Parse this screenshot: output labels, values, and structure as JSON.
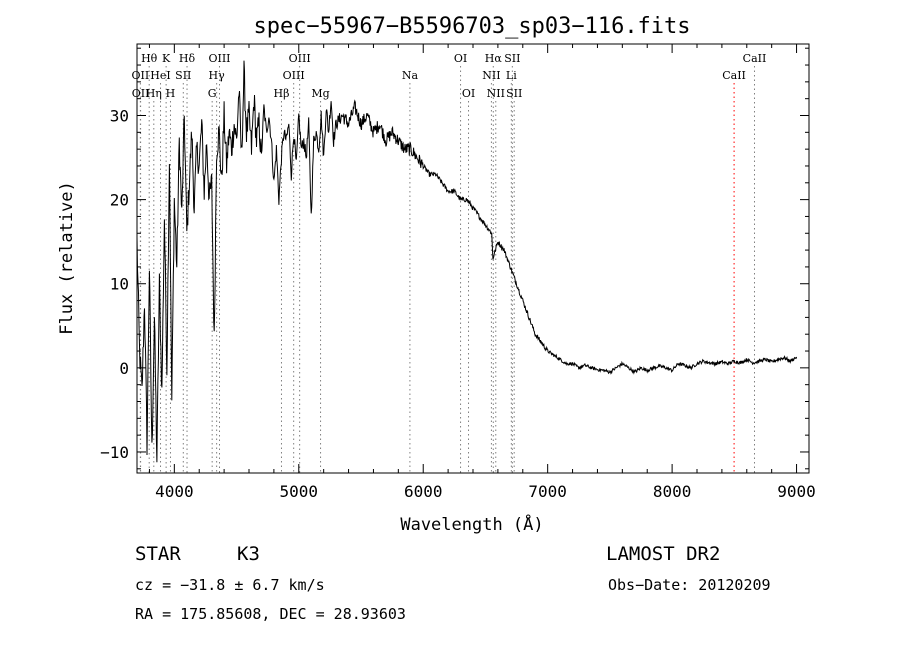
{
  "chart_data": {
    "type": "line",
    "title": "spec−55967−B5596703_sp03−116.fits",
    "xlabel": "Wavelength (Å)",
    "ylabel": "Flux (relative)",
    "xlim": [
      3700,
      9100
    ],
    "ylim": [
      -12.5,
      38.5
    ],
    "xticks": [
      4000,
      5000,
      6000,
      7000,
      8000,
      9000
    ],
    "xtick_labels": [
      "4000",
      "5000",
      "6000",
      "7000",
      "8000",
      "9000"
    ],
    "yticks": [
      -10,
      0,
      10,
      20,
      30
    ],
    "ytick_labels": [
      "−10",
      "0",
      "10",
      "20",
      "30"
    ],
    "grid": false,
    "series": [
      {
        "x": [
          3700,
          3720,
          3740,
          3760,
          3780,
          3800,
          3820,
          3840,
          3860,
          3880,
          3900,
          3920,
          3940,
          3960,
          3980,
          4000,
          4020,
          4040,
          4060,
          4080,
          4100,
          4120,
          4140,
          4160,
          4180,
          4200,
          4220,
          4240,
          4260,
          4280,
          4300,
          4320,
          4340,
          4360,
          4380,
          4400,
          4420,
          4440,
          4460,
          4480,
          4500,
          4520,
          4540,
          4560,
          4580,
          4600,
          4620,
          4640,
          4660,
          4680,
          4700,
          4720,
          4740,
          4760,
          4780,
          4800,
          4820,
          4840,
          4860,
          4880,
          4900,
          4920,
          4940,
          4960,
          4980,
          5000,
          5020,
          5040,
          5060,
          5080,
          5100,
          5120,
          5140,
          5160,
          5180,
          5200,
          5220,
          5240,
          5260,
          5280,
          5300,
          5350,
          5400,
          5450,
          5500,
          5550,
          5600,
          5650,
          5700,
          5750,
          5800,
          5850,
          5900,
          5950,
          6000,
          6050,
          6100,
          6150,
          6200,
          6250,
          6300,
          6350,
          6400,
          6450,
          6500,
          6550,
          6560,
          6600,
          6650,
          6700,
          6750,
          6800,
          6850,
          6900,
          6950,
          7000,
          7050,
          7100,
          7150,
          7200,
          7250,
          7300,
          7350,
          7400,
          7450,
          7500,
          7550,
          7600,
          7650,
          7700,
          7750,
          7800,
          7850,
          7900,
          7950,
          8000,
          8050,
          8100,
          8150,
          8200,
          8250,
          8300,
          8350,
          8400,
          8450,
          8500,
          8550,
          8600,
          8650,
          8700,
          8750,
          8800,
          8850,
          8900,
          8950,
          9000
        ],
        "y": [
          15,
          2,
          -3,
          8,
          -9,
          12,
          -10,
          6,
          -11,
          10,
          -3,
          18,
          0,
          25,
          -4,
          20,
          12,
          27,
          18,
          30,
          16,
          22,
          28,
          19,
          26,
          24,
          29,
          21,
          27,
          20,
          22,
          3,
          26,
          28,
          22,
          30,
          24,
          28,
          26,
          29,
          27,
          33,
          25,
          35,
          28,
          30,
          26,
          32,
          27,
          29,
          25,
          31,
          28,
          30,
          27,
          22,
          26,
          20,
          25,
          28,
          27,
          29,
          23,
          28,
          24,
          30,
          26,
          27,
          25,
          29,
          18,
          27,
          28,
          26,
          30,
          25,
          31,
          28,
          32,
          27,
          29,
          30,
          29,
          31,
          29,
          30,
          28,
          29,
          27,
          28,
          27,
          26,
          26,
          25,
          24,
          23,
          23,
          22,
          21,
          21,
          20,
          20,
          19,
          18,
          17,
          16,
          13,
          15,
          14,
          12,
          10,
          8,
          6,
          4,
          3,
          2,
          1.5,
          1,
          0.5,
          0.5,
          0,
          0.3,
          0,
          -0.2,
          -0.3,
          -0.5,
          0,
          0.5,
          0,
          -0.5,
          0,
          -0.3,
          0,
          0.2,
          0,
          -0.3,
          0.5,
          0.3,
          0,
          0.5,
          0.8,
          0.6,
          0.5,
          0.7,
          0.5,
          0.8,
          0.6,
          1,
          0.6,
          0.8,
          1,
          0.7,
          1,
          1.2,
          0.8,
          1.3
        ]
      }
    ],
    "line_markers": [
      {
        "label": "Hθ",
        "x": 3798,
        "tier": 0,
        "color": "#808080"
      },
      {
        "label": "K",
        "x": 3934,
        "tier": 0,
        "color": "#808080"
      },
      {
        "label": "Hδ",
        "x": 4102,
        "tier": 0,
        "color": "#808080"
      },
      {
        "label": "OII",
        "x": 3727,
        "tier": 1,
        "color": "#808080"
      },
      {
        "label": "HeI",
        "x": 3889,
        "tier": 1,
        "color": "#808080"
      },
      {
        "label": "SII",
        "x": 4072,
        "tier": 1,
        "color": "#808080"
      },
      {
        "label": "OII",
        "x": 3729,
        "tier": 2,
        "color": "#808080"
      },
      {
        "label": "Hη",
        "x": 3835,
        "tier": 2,
        "color": "#808080"
      },
      {
        "label": "H",
        "x": 3969,
        "tier": 2,
        "color": "#808080"
      },
      {
        "label": "OIII",
        "x": 4363,
        "tier": 0,
        "color": "#808080"
      },
      {
        "label": "Hγ",
        "x": 4340,
        "tier": 1,
        "color": "#808080"
      },
      {
        "label": "G",
        "x": 4304,
        "tier": 2,
        "color": "#808080"
      },
      {
        "label": "OIII",
        "x": 5007,
        "tier": 0,
        "color": "#808080"
      },
      {
        "label": "OIII",
        "x": 4959,
        "tier": 1,
        "color": "#808080"
      },
      {
        "label": "Hβ",
        "x": 4861,
        "tier": 2,
        "color": "#808080"
      },
      {
        "label": "Mg",
        "x": 5175,
        "tier": 2,
        "color": "#808080"
      },
      {
        "label": "Na",
        "x": 5893,
        "tier": 1,
        "color": "#808080"
      },
      {
        "label": "OI",
        "x": 6300,
        "tier": 0,
        "color": "#808080"
      },
      {
        "label": "OI",
        "x": 6364,
        "tier": 2,
        "color": "#808080"
      },
      {
        "label": "Hα",
        "x": 6563,
        "tier": 0,
        "color": "#808080"
      },
      {
        "label": "SII",
        "x": 6716,
        "tier": 0,
        "color": "#808080"
      },
      {
        "label": "NII",
        "x": 6548,
        "tier": 1,
        "color": "#808080"
      },
      {
        "label": "Li",
        "x": 6708,
        "tier": 1,
        "color": "#808080"
      },
      {
        "label": "NII",
        "x": 6583,
        "tier": 2,
        "color": "#808080"
      },
      {
        "label": "SII",
        "x": 6731,
        "tier": 2,
        "color": "#808080"
      },
      {
        "label": "CaII",
        "x": 8662,
        "tier": 0,
        "color": "#808080"
      },
      {
        "label": "CaII",
        "x": 8498,
        "tier": 1,
        "color": "#ff0000"
      }
    ]
  },
  "info": {
    "object_class": "STAR",
    "subclass": "K3",
    "survey": "LAMOST DR2",
    "redshift": "cz = −31.8 ± 6.7 km/s",
    "obs_date": "Obs−Date: 20120209",
    "coords": "RA = 175.85608, DEC =  28.93603"
  }
}
